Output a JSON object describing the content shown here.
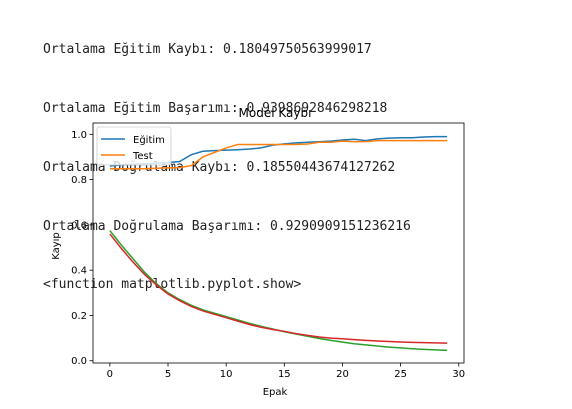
{
  "console": {
    "lines": [
      "Ortalama Eğitim Kaybı: 0.18049750563999017",
      "Ortalama Eğitim Başarımı: 0.9398692846298218",
      "Ortalama Doğrulama Kaybı: 0.18550443674127262",
      "Ortalama Doğrulama Başarımı: 0.9290909151236216",
      "<function matplotlib.pyplot.show>"
    ]
  },
  "chart_data": {
    "type": "line",
    "title": "Model Kaybı",
    "xlabel": "Epak",
    "ylabel": "Kayıp",
    "xlim": [
      -1.45,
      30.45
    ],
    "ylim": [
      -0.01,
      1.05
    ],
    "xticks": [
      0,
      5,
      10,
      15,
      20,
      25,
      30
    ],
    "yticks": [
      0.0,
      0.2,
      0.4,
      0.6,
      0.8,
      1.0
    ],
    "xtick_labels": [
      "0",
      "5",
      "10",
      "15",
      "20",
      "25",
      "30"
    ],
    "ytick_labels": [
      "0.0",
      "0.2",
      "0.4",
      "0.6",
      "0.8",
      "1.0"
    ],
    "grid": false,
    "legend": {
      "placement": "top-left",
      "entries": [
        "Eğitim",
        "Test"
      ]
    },
    "x": [
      0,
      1,
      2,
      3,
      4,
      5,
      6,
      7,
      8,
      9,
      10,
      11,
      12,
      13,
      14,
      15,
      16,
      17,
      18,
      19,
      20,
      21,
      22,
      23,
      24,
      25,
      26,
      27,
      28,
      29
    ],
    "series": [
      {
        "name": "Eğitim",
        "color": "#1f77b4",
        "values": [
          0.86,
          0.865,
          0.868,
          0.87,
          0.872,
          0.875,
          0.88,
          0.91,
          0.925,
          0.928,
          0.93,
          0.932,
          0.935,
          0.94,
          0.952,
          0.958,
          0.962,
          0.965,
          0.967,
          0.97,
          0.975,
          0.978,
          0.972,
          0.98,
          0.983,
          0.985,
          0.985,
          0.988,
          0.99,
          0.99
        ]
      },
      {
        "name": "Test",
        "color": "#ff7f0e",
        "values": [
          0.848,
          0.848,
          0.848,
          0.848,
          0.85,
          0.852,
          0.853,
          0.862,
          0.9,
          0.92,
          0.94,
          0.955,
          0.955,
          0.955,
          0.955,
          0.955,
          0.955,
          0.957,
          0.965,
          0.965,
          0.97,
          0.967,
          0.968,
          0.972,
          0.972,
          0.972,
          0.972,
          0.972,
          0.972,
          0.972
        ]
      },
      {
        "color": "#2ca02c",
        "values": [
          0.575,
          0.51,
          0.45,
          0.39,
          0.34,
          0.3,
          0.27,
          0.245,
          0.225,
          0.21,
          0.195,
          0.18,
          0.165,
          0.152,
          0.14,
          0.128,
          0.118,
          0.108,
          0.098,
          0.09,
          0.082,
          0.075,
          0.07,
          0.065,
          0.06,
          0.057,
          0.053,
          0.05,
          0.048,
          0.046
        ]
      },
      {
        "color": "#d62728",
        "values": [
          0.56,
          0.495,
          0.435,
          0.38,
          0.335,
          0.295,
          0.265,
          0.24,
          0.22,
          0.205,
          0.19,
          0.175,
          0.16,
          0.148,
          0.138,
          0.13,
          0.12,
          0.112,
          0.105,
          0.1,
          0.097,
          0.093,
          0.09,
          0.087,
          0.085,
          0.083,
          0.081,
          0.08,
          0.079,
          0.078
        ]
      }
    ]
  }
}
